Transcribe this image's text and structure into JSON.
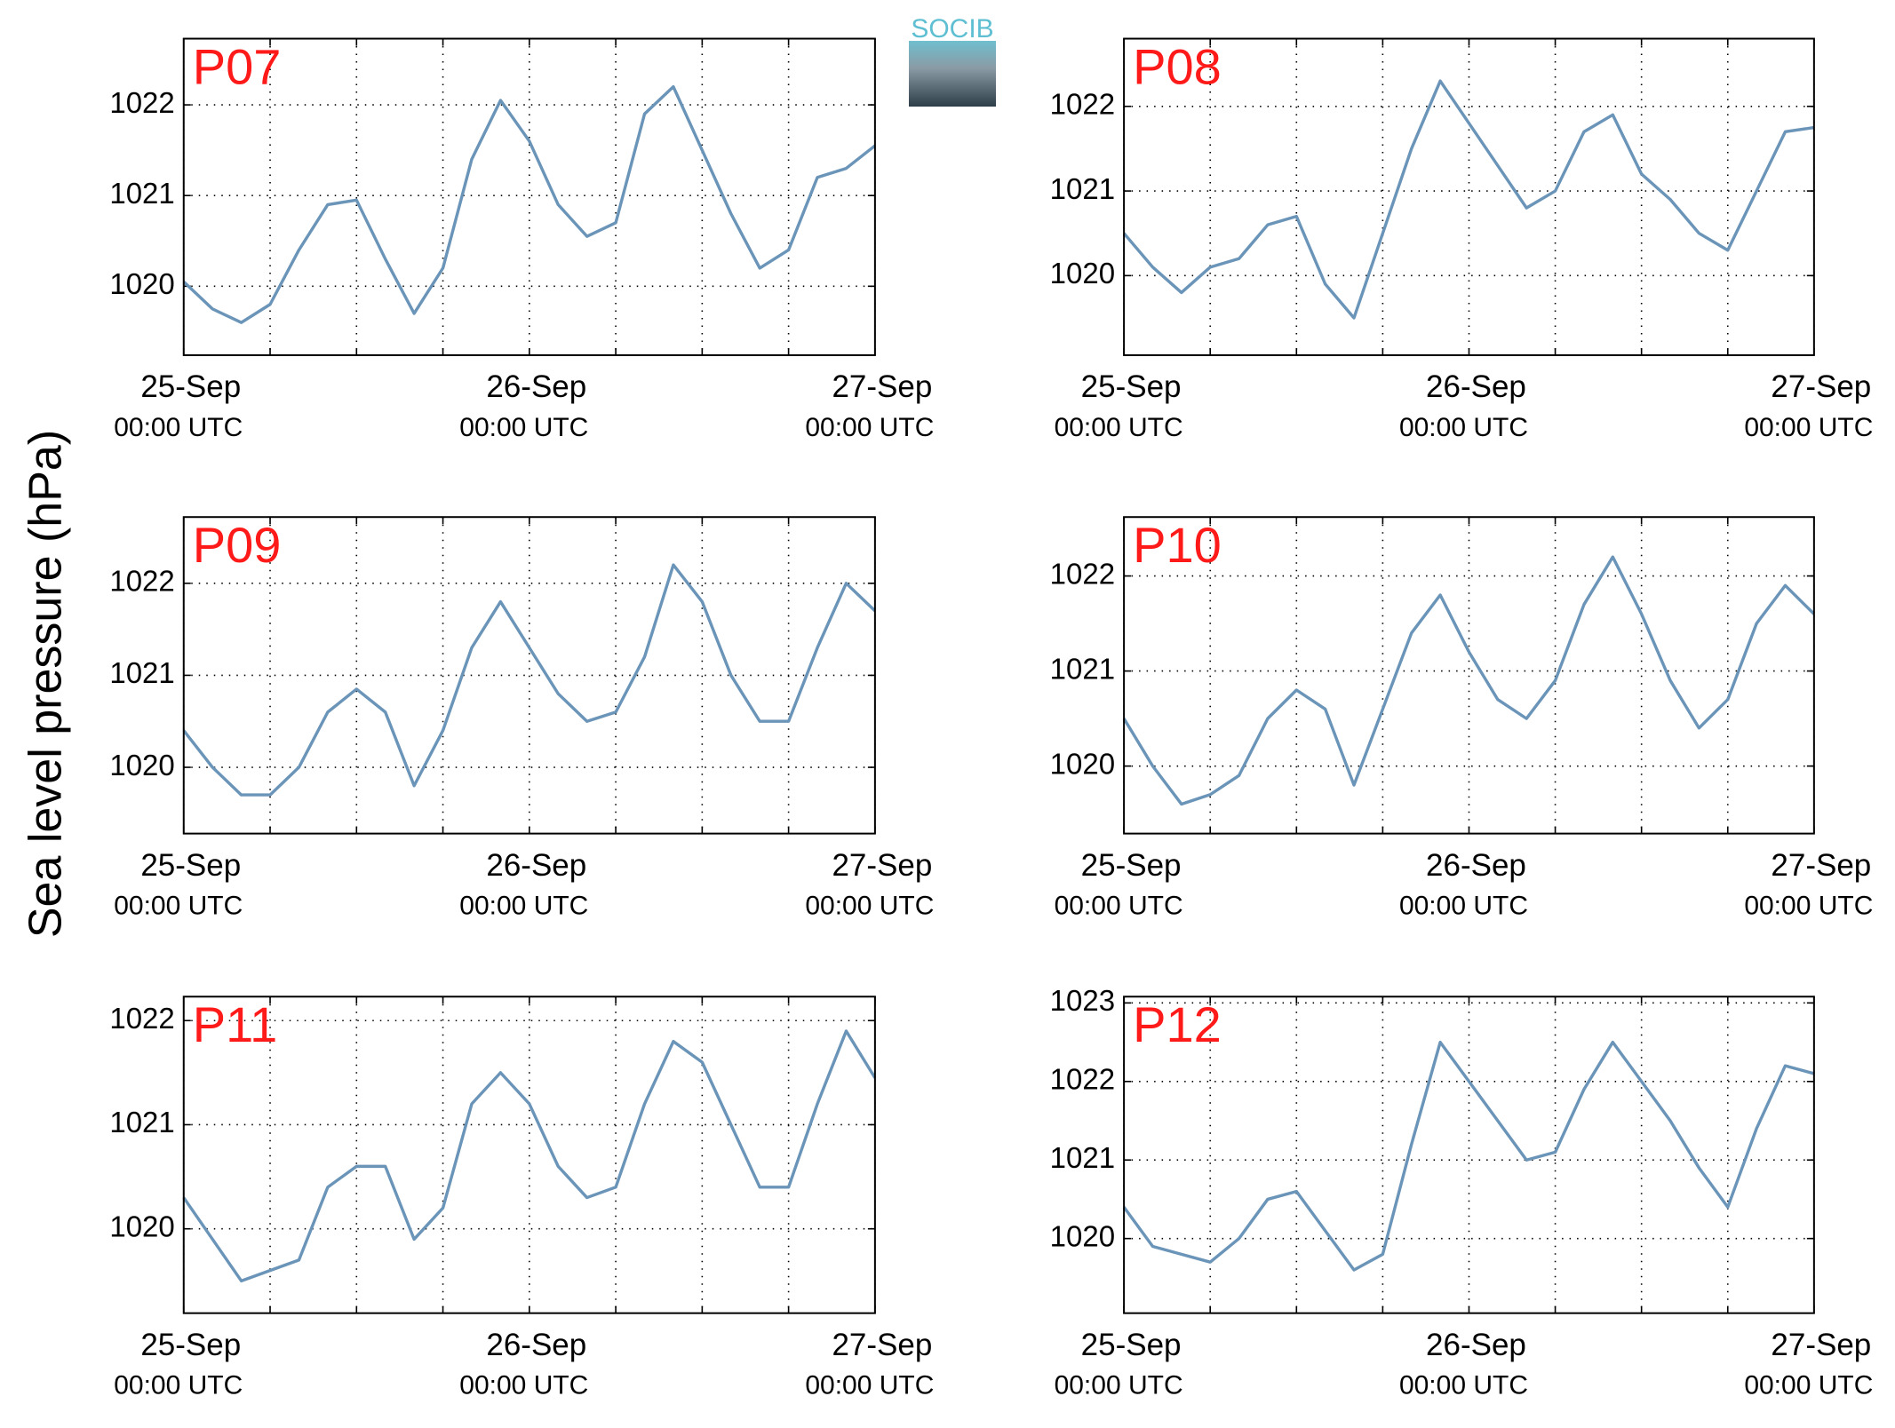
{
  "ylabel": "Sea level pressure (hPa)",
  "logo": "SOCIB",
  "chart_data": [
    {
      "type": "line",
      "title": "P07",
      "color": "#6a94b8",
      "grid": true,
      "x": [
        0,
        2,
        4,
        6,
        8,
        10,
        12,
        14,
        16,
        18,
        20,
        22,
        24,
        26,
        28,
        30,
        32,
        34,
        36,
        38,
        40,
        42,
        44,
        46,
        48
      ],
      "values": [
        1020.05,
        1019.75,
        1019.6,
        1019.8,
        1020.4,
        1020.9,
        1020.95,
        1020.3,
        1019.7,
        1020.2,
        1021.4,
        1022.05,
        1021.6,
        1020.9,
        1020.55,
        1020.7,
        1021.9,
        1022.2,
        1021.5,
        1020.8,
        1020.2,
        1020.4,
        1021.2,
        1021.3,
        1021.55
      ],
      "xlim": [
        0,
        48
      ],
      "xticks": [
        {
          "value": 0,
          "label": "25-Sep"
        },
        {
          "value": 24,
          "label": "26-Sep"
        },
        {
          "value": 48,
          "label": "27-Sep"
        }
      ],
      "xtick_sublabel": "00:00 UTC",
      "xminor_ticks": [
        6,
        12,
        18,
        30,
        36,
        42
      ],
      "ylim": [
        1019.24,
        1022.73
      ],
      "yticks": [
        1020,
        1021,
        1022
      ]
    },
    {
      "type": "line",
      "title": "P08",
      "color": "#6a94b8",
      "grid": true,
      "x": [
        0,
        2,
        4,
        6,
        8,
        10,
        12,
        14,
        16,
        18,
        20,
        22,
        24,
        26,
        28,
        30,
        32,
        34,
        36,
        38,
        40,
        42,
        44,
        46,
        48
      ],
      "values": [
        1020.5,
        1020.1,
        1019.8,
        1020.1,
        1020.2,
        1020.6,
        1020.7,
        1019.9,
        1019.5,
        1020.5,
        1021.5,
        1022.3,
        1021.8,
        1021.3,
        1020.8,
        1021.0,
        1021.7,
        1021.9,
        1021.2,
        1020.9,
        1020.5,
        1020.3,
        1021.0,
        1021.7,
        1021.75
      ],
      "xlim": [
        0,
        48
      ],
      "xticks": [
        {
          "value": 0,
          "label": "25-Sep"
        },
        {
          "value": 24,
          "label": "26-Sep"
        },
        {
          "value": 48,
          "label": "27-Sep"
        }
      ],
      "xtick_sublabel": "00:00 UTC",
      "xminor_ticks": [
        6,
        12,
        18,
        30,
        36,
        42
      ],
      "ylim": [
        1019.06,
        1022.8
      ],
      "yticks": [
        1020,
        1021,
        1022
      ]
    },
    {
      "type": "line",
      "title": "P09",
      "color": "#6a94b8",
      "grid": true,
      "x": [
        0,
        2,
        4,
        6,
        8,
        10,
        12,
        14,
        16,
        18,
        20,
        22,
        24,
        26,
        28,
        30,
        32,
        34,
        36,
        38,
        40,
        42,
        44,
        46,
        48
      ],
      "values": [
        1020.4,
        1020.0,
        1019.7,
        1019.7,
        1020.0,
        1020.6,
        1020.85,
        1020.6,
        1019.8,
        1020.4,
        1021.3,
        1021.8,
        1021.3,
        1020.8,
        1020.5,
        1020.6,
        1021.2,
        1022.2,
        1021.8,
        1021.0,
        1020.5,
        1020.5,
        1021.3,
        1022.0,
        1021.7
      ],
      "xlim": [
        0,
        48
      ],
      "xticks": [
        {
          "value": 0,
          "label": "25-Sep"
        },
        {
          "value": 24,
          "label": "26-Sep"
        },
        {
          "value": 48,
          "label": "27-Sep"
        }
      ],
      "xtick_sublabel": "00:00 UTC",
      "xminor_ticks": [
        6,
        12,
        18,
        30,
        36,
        42
      ],
      "ylim": [
        1019.28,
        1022.72
      ],
      "yticks": [
        1020,
        1021,
        1022
      ]
    },
    {
      "type": "line",
      "title": "P10",
      "color": "#6a94b8",
      "grid": true,
      "x": [
        0,
        2,
        4,
        6,
        8,
        10,
        12,
        14,
        16,
        18,
        20,
        22,
        24,
        26,
        28,
        30,
        32,
        34,
        36,
        38,
        40,
        42,
        44,
        46,
        48
      ],
      "values": [
        1020.5,
        1020.0,
        1019.6,
        1019.7,
        1019.9,
        1020.5,
        1020.8,
        1020.6,
        1019.8,
        1020.6,
        1021.4,
        1021.8,
        1021.2,
        1020.7,
        1020.5,
        1020.9,
        1021.7,
        1022.2,
        1021.6,
        1020.9,
        1020.4,
        1020.7,
        1021.5,
        1021.9,
        1021.6
      ],
      "xlim": [
        0,
        48
      ],
      "xticks": [
        {
          "value": 0,
          "label": "25-Sep"
        },
        {
          "value": 24,
          "label": "26-Sep"
        },
        {
          "value": 48,
          "label": "27-Sep"
        }
      ],
      "xtick_sublabel": "00:00 UTC",
      "xminor_ticks": [
        6,
        12,
        18,
        30,
        36,
        42
      ],
      "ylim": [
        1019.29,
        1022.62
      ],
      "yticks": [
        1020,
        1021,
        1022
      ]
    },
    {
      "type": "line",
      "title": "P11",
      "color": "#6a94b8",
      "grid": true,
      "x": [
        0,
        2,
        4,
        6,
        8,
        10,
        12,
        14,
        16,
        18,
        20,
        22,
        24,
        26,
        28,
        30,
        32,
        34,
        36,
        38,
        40,
        42,
        44,
        46,
        48
      ],
      "values": [
        1020.3,
        1019.9,
        1019.5,
        1019.6,
        1019.7,
        1020.4,
        1020.6,
        1020.6,
        1019.9,
        1020.2,
        1021.2,
        1021.5,
        1021.2,
        1020.6,
        1020.3,
        1020.4,
        1021.2,
        1021.8,
        1021.6,
        1021.0,
        1020.4,
        1020.4,
        1021.2,
        1021.9,
        1021.45
      ],
      "xlim": [
        0,
        48
      ],
      "xticks": [
        {
          "value": 0,
          "label": "25-Sep"
        },
        {
          "value": 24,
          "label": "26-Sep"
        },
        {
          "value": 48,
          "label": "27-Sep"
        }
      ],
      "xtick_sublabel": "00:00 UTC",
      "xminor_ticks": [
        6,
        12,
        18,
        30,
        36,
        42
      ],
      "ylim": [
        1019.19,
        1022.23
      ],
      "yticks": [
        1020,
        1021,
        1022
      ]
    },
    {
      "type": "line",
      "title": "P12",
      "color": "#6a94b8",
      "grid": true,
      "x": [
        0,
        2,
        4,
        6,
        8,
        10,
        12,
        14,
        16,
        18,
        20,
        22,
        24,
        26,
        28,
        30,
        32,
        34,
        36,
        38,
        40,
        42,
        44,
        46,
        48
      ],
      "values": [
        1020.4,
        1019.9,
        1019.8,
        1019.7,
        1020.0,
        1020.5,
        1020.6,
        1020.1,
        1019.6,
        1019.8,
        1021.2,
        1022.5,
        1022.0,
        1021.5,
        1021.0,
        1021.1,
        1021.9,
        1022.5,
        1022.0,
        1021.5,
        1020.9,
        1020.4,
        1021.4,
        1022.2,
        1022.1
      ],
      "xlim": [
        0,
        48
      ],
      "xticks": [
        {
          "value": 0,
          "label": "25-Sep"
        },
        {
          "value": 24,
          "label": "26-Sep"
        },
        {
          "value": 48,
          "label": "27-Sep"
        }
      ],
      "xtick_sublabel": "00:00 UTC",
      "xminor_ticks": [
        6,
        12,
        18,
        30,
        36,
        42
      ],
      "ylim": [
        1019.05,
        1023.08
      ],
      "yticks": [
        1020,
        1021,
        1022,
        1023
      ]
    }
  ]
}
